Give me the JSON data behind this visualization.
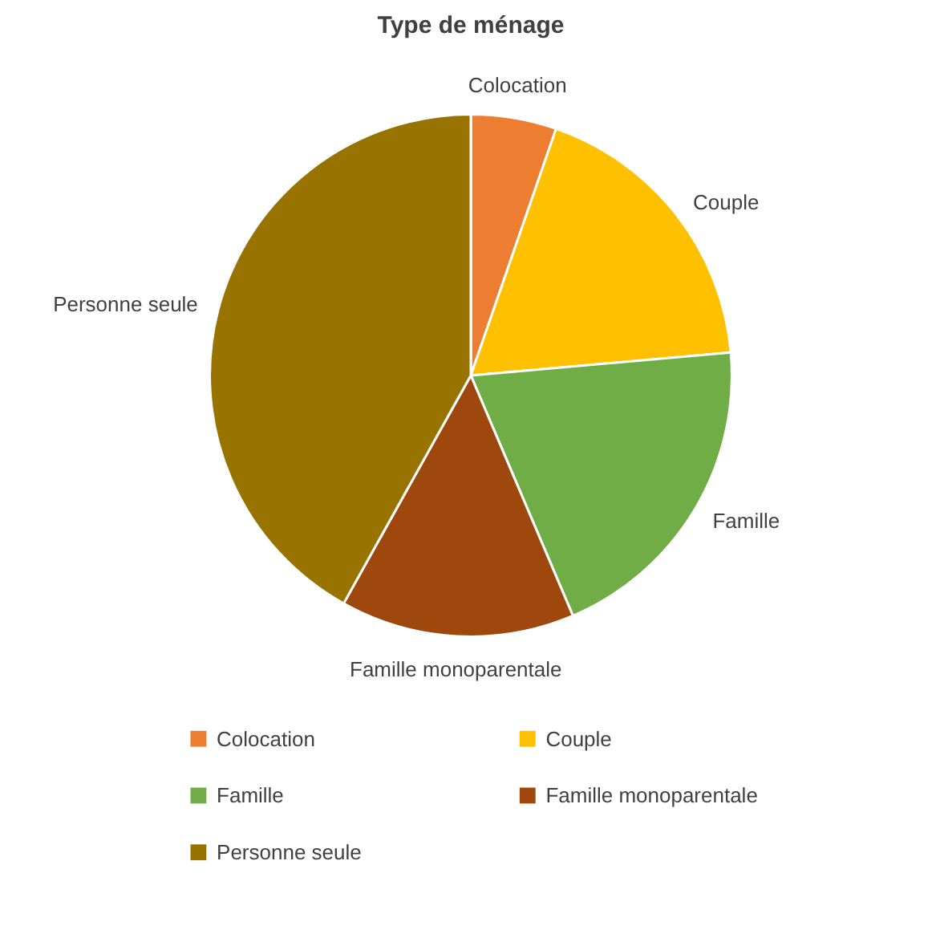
{
  "chart_data": {
    "type": "pie",
    "title": "Type de ménage",
    "categories": [
      "Colocation",
      "Couple",
      "Famille",
      "Famille monoparentale",
      "Personne seule"
    ],
    "values": [
      5.3,
      18.3,
      20,
      14.5,
      41.9
    ],
    "colors": [
      "#ed7d31",
      "#ffc000",
      "#70ad47",
      "#9e480e",
      "#997300"
    ],
    "legend": "bottom"
  }
}
